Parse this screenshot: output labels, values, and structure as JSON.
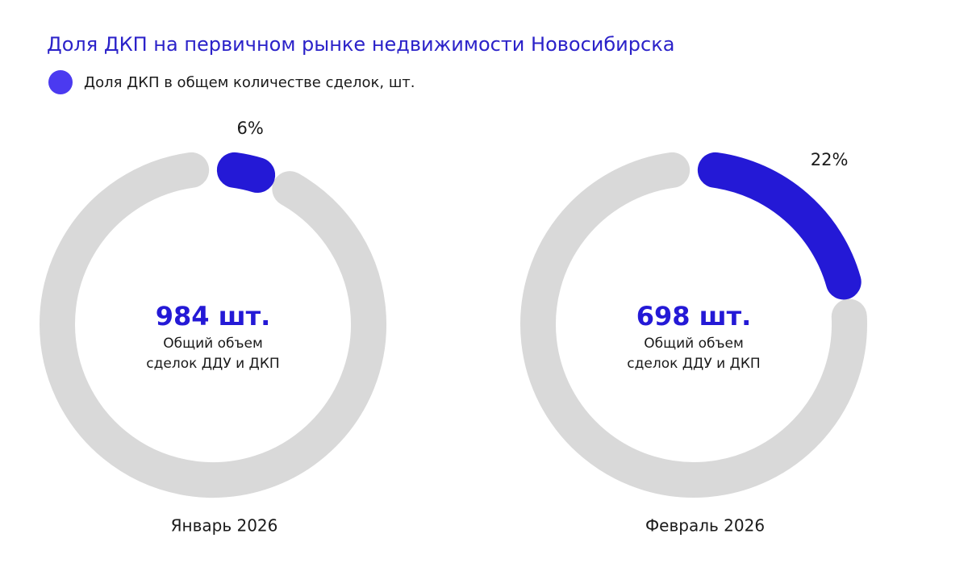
{
  "title": "Доля ДКП на первичном рынке недвижимости Новосибирска",
  "legend": {
    "label": "Доля ДКП в общем количестве сделок, шт.",
    "color": "#4b3af0"
  },
  "chart_data": [
    {
      "type": "donut",
      "xlabel": "Январь 2026",
      "track_color": "#d9d9d9",
      "series": [
        {
          "color": "#2419d6",
          "values": [
            6
          ],
          "value_labels": [
            "6%"
          ]
        }
      ],
      "center_value": "984 шт.",
      "center_value_color": "#2419d6",
      "center_text": [
        "Общий объем",
        "сделок ДДУ и ДКП"
      ]
    },
    {
      "type": "donut",
      "xlabel": "Февраль 2026",
      "track_color": "#d9d9d9",
      "series": [
        {
          "color": "#2419d6",
          "values": [
            22
          ],
          "value_labels": [
            "22%"
          ]
        }
      ],
      "center_value": "698 шт.",
      "center_value_color": "#2419d6",
      "center_text": [
        "Общий объем",
        "сделок ДДУ и ДКП"
      ]
    }
  ]
}
